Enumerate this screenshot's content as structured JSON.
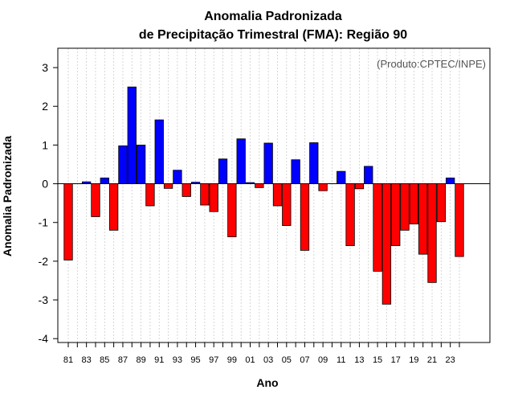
{
  "chart_data": {
    "type": "bar",
    "title": "Anomalia Padronizada",
    "subtitle": "de Precipitação Trimestral (FMA): Região 90",
    "credit": "(Produto:CPTEC/INPE)",
    "xlabel": "Ano",
    "ylabel": "Anomalia Padronizada",
    "ylim": [
      -4.1,
      3.5
    ],
    "yticks": [
      -4,
      -3,
      -2,
      -1,
      0,
      1,
      2,
      3
    ],
    "grid": "vertical-dotted",
    "positive_color": "#0000ff",
    "negative_color": "#ff0000",
    "categories": [
      "81",
      "82",
      "83",
      "84",
      "85",
      "86",
      "87",
      "88",
      "89",
      "90",
      "91",
      "92",
      "93",
      "94",
      "95",
      "96",
      "97",
      "98",
      "99",
      "00",
      "01",
      "02",
      "03",
      "04",
      "05",
      "06",
      "07",
      "08",
      "09",
      "10",
      "11",
      "12",
      "13",
      "14",
      "15",
      "16",
      "17",
      "18",
      "19",
      "20",
      "21",
      "22",
      "23",
      "24"
    ],
    "tick_labels": [
      "81",
      "83",
      "85",
      "87",
      "89",
      "91",
      "93",
      "95",
      "97",
      "99",
      "01",
      "03",
      "05",
      "07",
      "09",
      "11",
      "13",
      "15",
      "17",
      "19",
      "21",
      "23"
    ],
    "values": [
      -1.97,
      0.0,
      0.05,
      -0.85,
      0.15,
      -1.2,
      0.98,
      2.5,
      1.0,
      -0.57,
      1.65,
      -0.12,
      0.35,
      -0.33,
      0.04,
      -0.55,
      -0.72,
      0.64,
      -1.37,
      1.16,
      0.03,
      -0.1,
      1.05,
      -0.57,
      -1.08,
      0.62,
      -1.72,
      1.06,
      -0.18,
      0.0,
      0.32,
      -1.6,
      -0.13,
      0.45,
      -2.26,
      -3.11,
      -1.6,
      -1.2,
      -1.04,
      -1.82,
      -2.55,
      -0.98,
      0.15,
      -1.88
    ]
  }
}
